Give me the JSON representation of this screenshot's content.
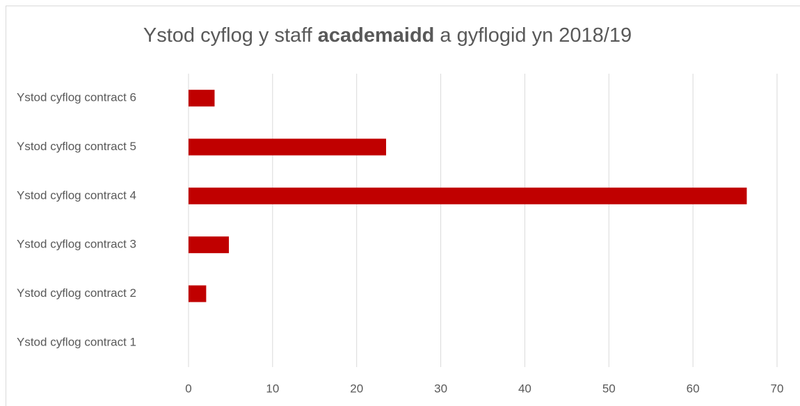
{
  "chart_data": {
    "type": "bar",
    "orientation": "horizontal",
    "title": [
      "Ystod cyflog y staff",
      "academaidd",
      "a gyflogid yn 2018/19"
    ],
    "categories": [
      "Ystod cyflog contract 1",
      "Ystod cyflog contract 2",
      "Ystod cyflog contract 3",
      "Ystod cyflog contract 4",
      "Ystod cyflog contract 5",
      "Ystod cyflog contract 6"
    ],
    "values": [
      0,
      2.1,
      4.8,
      66.4,
      23.5,
      3.1
    ],
    "color": "#c00000",
    "xlim": [
      0,
      70
    ],
    "xticks": [
      0,
      10,
      20,
      30,
      40,
      50,
      60,
      70
    ],
    "grid": true
  }
}
